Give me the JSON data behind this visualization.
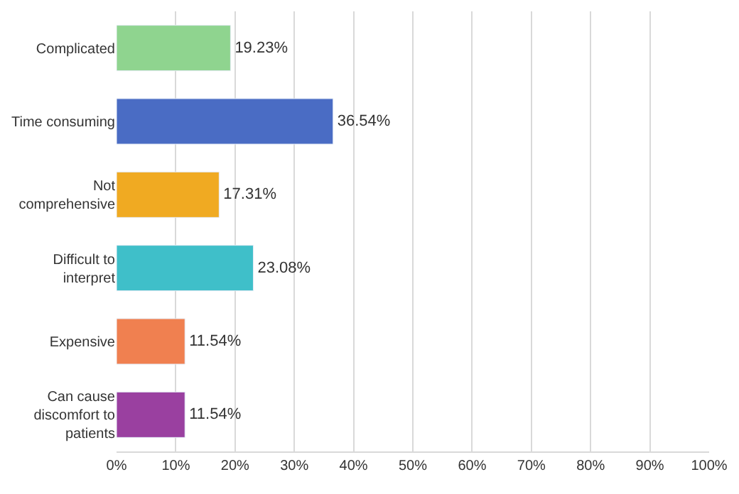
{
  "chart_data": {
    "type": "bar",
    "orientation": "horizontal",
    "categories": [
      "Complicated",
      "Time consuming",
      "Not\ncomprehensive",
      "Difficult to\ninterpret",
      "Expensive",
      "Can cause\ndiscomfort to\npatients"
    ],
    "values": [
      19.23,
      36.54,
      17.31,
      23.08,
      11.54,
      11.54
    ],
    "colors": [
      "#8fd48f",
      "#4a6cc4",
      "#f0aa22",
      "#3fbfc9",
      "#f08050",
      "#9a40a0"
    ],
    "value_labels": [
      "19.23%",
      "36.54%",
      "17.31%",
      "23.08%",
      "11.54%",
      "11.54%"
    ],
    "xlim": [
      0,
      100
    ],
    "xticks": [
      {
        "value": 0,
        "label": "0%"
      },
      {
        "value": 10,
        "label": "10%"
      },
      {
        "value": 20,
        "label": "20%"
      },
      {
        "value": 30,
        "label": "30%"
      },
      {
        "value": 40,
        "label": "40%"
      },
      {
        "value": 50,
        "label": "50%"
      },
      {
        "value": 60,
        "label": "60%"
      },
      {
        "value": 70,
        "label": "70%"
      },
      {
        "value": 80,
        "label": "80%"
      },
      {
        "value": 90,
        "label": "90%"
      },
      {
        "value": 100,
        "label": "100%"
      }
    ],
    "grid": "x",
    "legend": false
  }
}
